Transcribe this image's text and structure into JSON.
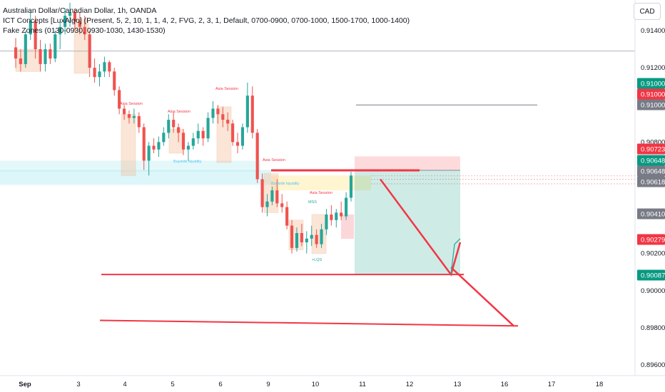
{
  "legend": {
    "title": "Australian Dollar/Canadian Dollar, 1h, OANDA",
    "ict": "ICT Concepts [LuxAlgo] (Present, 5, 2, 10, 1, 1, 4, 2, FVG, 2, 3, 1, Default, 0700-0900, 0700-1000, 1500-1700, 1000-1400)",
    "fake": "Fake Zones (0130-0930, 0930-1030, 1430-1530)"
  },
  "currency": "CAD",
  "colors": {
    "up": "#26a69a",
    "down": "#ef5350",
    "red": "#f23645",
    "green": "#089981",
    "gray": "#787b86",
    "liq": "#b2ebf2",
    "session": "#f5c6a5",
    "fvg": "#fff3c4"
  },
  "chart_data": {
    "type": "candlestick",
    "symbol": "AUD/CAD",
    "timeframe": "1h",
    "ylim": [
      0.895,
      0.9165
    ],
    "x_ticks": [
      "Sep",
      "3",
      "4",
      "5",
      "6",
      "9",
      "10",
      "11",
      "12",
      "13",
      "16",
      "17",
      "18"
    ],
    "y_ticks": [
      "0.91400",
      "0.91200",
      "0.90800",
      "0.90200",
      "0.90000",
      "0.89800",
      "0.89600"
    ],
    "price_labels": [
      {
        "value": "0.91000",
        "color": "#089981"
      },
      {
        "value": "0.91000",
        "color": "#f23645"
      },
      {
        "value": "0.91000",
        "color": "#787b86"
      },
      {
        "value": "0.90723",
        "color": "#f23645"
      },
      {
        "value": "0.90648",
        "color": "#089981"
      },
      {
        "value": "0.90648",
        "color": "#787b86"
      },
      {
        "value": "0.90618",
        "color": "#787b86"
      },
      {
        "value": "0.90410",
        "color": "#787b86"
      },
      {
        "value": "0.90279",
        "color": "#f23645"
      },
      {
        "value": "0.90087",
        "color": "#089981"
      }
    ],
    "annotations": [
      "Asia Session",
      "Asia Session",
      "Asia Session",
      "Asia Session",
      "Asia Session",
      "Buyside liquidity",
      "Buyside liquidity",
      "MSS",
      "+LQS"
    ],
    "candles_ohlc": [
      [
        0.9131,
        0.9136,
        0.912,
        0.9125
      ],
      [
        0.9125,
        0.913,
        0.9118,
        0.9122
      ],
      [
        0.9122,
        0.914,
        0.912,
        0.9138
      ],
      [
        0.9138,
        0.915,
        0.9135,
        0.9145
      ],
      [
        0.9145,
        0.9148,
        0.9125,
        0.913
      ],
      [
        0.913,
        0.9135,
        0.9118,
        0.9122
      ],
      [
        0.9122,
        0.9133,
        0.9118,
        0.913
      ],
      [
        0.913,
        0.9133,
        0.9122,
        0.9125
      ],
      [
        0.9125,
        0.914,
        0.9123,
        0.9138
      ],
      [
        0.9138,
        0.9145,
        0.913,
        0.9142
      ],
      [
        0.9142,
        0.9152,
        0.9138,
        0.9148
      ],
      [
        0.9148,
        0.9155,
        0.9142,
        0.915
      ],
      [
        0.915,
        0.9152,
        0.914,
        0.9145
      ],
      [
        0.9145,
        0.915,
        0.9138,
        0.9142
      ],
      [
        0.9142,
        0.9148,
        0.9135,
        0.9138
      ],
      [
        0.9138,
        0.914,
        0.9115,
        0.912
      ],
      [
        0.912,
        0.9125,
        0.9112,
        0.9115
      ],
      [
        0.9115,
        0.9122,
        0.911,
        0.9118
      ],
      [
        0.9118,
        0.9126,
        0.9115,
        0.9123
      ],
      [
        0.9123,
        0.9124,
        0.9115,
        0.9118
      ],
      [
        0.9118,
        0.912,
        0.9105,
        0.9108
      ],
      [
        0.9108,
        0.911,
        0.9095,
        0.9098
      ],
      [
        0.9098,
        0.91,
        0.9092,
        0.9095
      ],
      [
        0.9095,
        0.9097,
        0.909,
        0.9093
      ],
      [
        0.9093,
        0.9098,
        0.909,
        0.9094
      ],
      [
        0.9094,
        0.9096,
        0.9085,
        0.9088
      ],
      [
        0.9088,
        0.909,
        0.9065,
        0.907
      ],
      [
        0.907,
        0.908,
        0.9062,
        0.9078
      ],
      [
        0.9078,
        0.9082,
        0.9074,
        0.9076
      ],
      [
        0.9076,
        0.9083,
        0.9072,
        0.908
      ],
      [
        0.908,
        0.9088,
        0.9078,
        0.9085
      ],
      [
        0.9085,
        0.9095,
        0.9082,
        0.9092
      ],
      [
        0.9092,
        0.9096,
        0.9085,
        0.9088
      ],
      [
        0.9088,
        0.909,
        0.908,
        0.9085
      ],
      [
        0.9085,
        0.9087,
        0.9073,
        0.9076
      ],
      [
        0.9076,
        0.908,
        0.907,
        0.9078
      ],
      [
        0.9078,
        0.9085,
        0.9076,
        0.9082
      ],
      [
        0.9082,
        0.909,
        0.9079,
        0.9086
      ],
      [
        0.9086,
        0.9088,
        0.9078,
        0.9082
      ],
      [
        0.9082,
        0.9096,
        0.908,
        0.9093
      ],
      [
        0.9093,
        0.9102,
        0.909,
        0.9098
      ],
      [
        0.9098,
        0.91,
        0.909,
        0.9095
      ],
      [
        0.9095,
        0.9099,
        0.9088,
        0.9092
      ],
      [
        0.9092,
        0.9096,
        0.9086,
        0.909
      ],
      [
        0.909,
        0.9092,
        0.9078,
        0.908
      ],
      [
        0.908,
        0.9085,
        0.9074,
        0.9078
      ],
      [
        0.9078,
        0.909,
        0.9076,
        0.9088
      ],
      [
        0.9088,
        0.9112,
        0.9085,
        0.9105
      ],
      [
        0.9105,
        0.911,
        0.9082,
        0.9085
      ],
      [
        0.9085,
        0.9087,
        0.9058,
        0.906
      ],
      [
        0.906,
        0.9063,
        0.9042,
        0.9045
      ],
      [
        0.9045,
        0.9052,
        0.904,
        0.9048
      ],
      [
        0.9048,
        0.9056,
        0.9046,
        0.9054
      ],
      [
        0.9054,
        0.906,
        0.9045,
        0.9047
      ],
      [
        0.9047,
        0.9052,
        0.9042,
        0.9045
      ],
      [
        0.9045,
        0.9048,
        0.9033,
        0.9035
      ],
      [
        0.9035,
        0.9038,
        0.902,
        0.9023
      ],
      [
        0.9023,
        0.9034,
        0.9021,
        0.9031
      ],
      [
        0.9031,
        0.9036,
        0.9024,
        0.9026
      ],
      [
        0.9026,
        0.9032,
        0.902,
        0.9028
      ],
      [
        0.9028,
        0.9035,
        0.9024,
        0.903
      ],
      [
        0.903,
        0.9033,
        0.9023,
        0.9025
      ],
      [
        0.9025,
        0.9036,
        0.9023,
        0.9033
      ],
      [
        0.9033,
        0.9044,
        0.903,
        0.9041
      ],
      [
        0.9041,
        0.9046,
        0.9035,
        0.9038
      ],
      [
        0.9038,
        0.9044,
        0.9034,
        0.9042
      ],
      [
        0.9042,
        0.9048,
        0.9038,
        0.904
      ],
      [
        0.904,
        0.9053,
        0.9038,
        0.905
      ],
      [
        0.905,
        0.9064,
        0.9048,
        0.9062
      ]
    ],
    "drawings": {
      "horizontal_levels": [
        0.91,
        0.90648,
        0.90087,
        0.8981
      ],
      "projected_path": [
        [
          0.906,
          "after 11"
        ],
        [
          0.90087,
          "13"
        ],
        [
          0.9026,
          "13"
        ],
        [
          0.8982,
          "16"
        ]
      ],
      "position": {
        "entry": 0.90648,
        "stop": 0.90723,
        "target": 0.90087
      }
    }
  }
}
